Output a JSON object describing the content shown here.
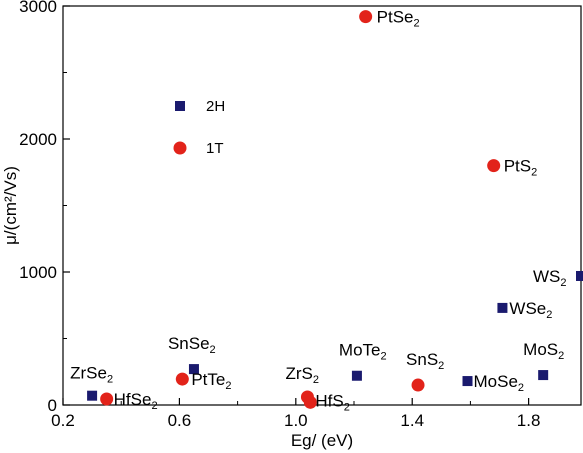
{
  "chart_data": {
    "type": "scatter",
    "title": "",
    "xlabel": "Eg/ (eV)",
    "ylabel": "μ/(cm²/Vs)",
    "xlim": [
      0.2,
      1.98
    ],
    "ylim": [
      0,
      3000
    ],
    "xticks": [
      "0.2",
      "0.6",
      "1.0",
      "1.4",
      "1.8"
    ],
    "xtick_values": [
      0.2,
      0.6,
      1.0,
      1.4,
      1.8
    ],
    "yticks": [
      "0",
      "1000",
      "2000",
      "3000"
    ],
    "ytick_values": [
      0,
      1000,
      2000,
      3000
    ],
    "grid": false,
    "legend_position": "upper-left",
    "series": [
      {
        "name": "2H",
        "marker": "square",
        "color": "#1a1a6e",
        "points": [
          {
            "x": 0.3,
            "y": 70,
            "label": "ZrSe",
            "sub": "2"
          },
          {
            "x": 0.65,
            "y": 270,
            "label": "SnSe",
            "sub": "2"
          },
          {
            "x": 1.21,
            "y": 220,
            "label": "MoTe",
            "sub": "2"
          },
          {
            "x": 1.59,
            "y": 180,
            "label": "MoSe",
            "sub": "2"
          },
          {
            "x": 1.85,
            "y": 225,
            "label": "MoS",
            "sub": "2"
          },
          {
            "x": 1.71,
            "y": 730,
            "label": "WSe",
            "sub": "2"
          },
          {
            "x": 1.98,
            "y": 970,
            "label": "WS",
            "sub": "2"
          }
        ]
      },
      {
        "name": "1T",
        "marker": "circle",
        "color": "#e2231a",
        "points": [
          {
            "x": 0.35,
            "y": 45,
            "label": "HfSe",
            "sub": "2"
          },
          {
            "x": 0.61,
            "y": 195,
            "label": "PtTe",
            "sub": "2"
          },
          {
            "x": 1.04,
            "y": 60,
            "label": "ZrS",
            "sub": "2"
          },
          {
            "x": 1.05,
            "y": 20,
            "label": "HfS",
            "sub": "2"
          },
          {
            "x": 1.42,
            "y": 150,
            "label": "SnS",
            "sub": "2"
          },
          {
            "x": 1.24,
            "y": 2920,
            "label": "PtSe",
            "sub": "2"
          },
          {
            "x": 1.68,
            "y": 1800,
            "label": "PtS",
            "sub": "2"
          }
        ]
      }
    ]
  }
}
